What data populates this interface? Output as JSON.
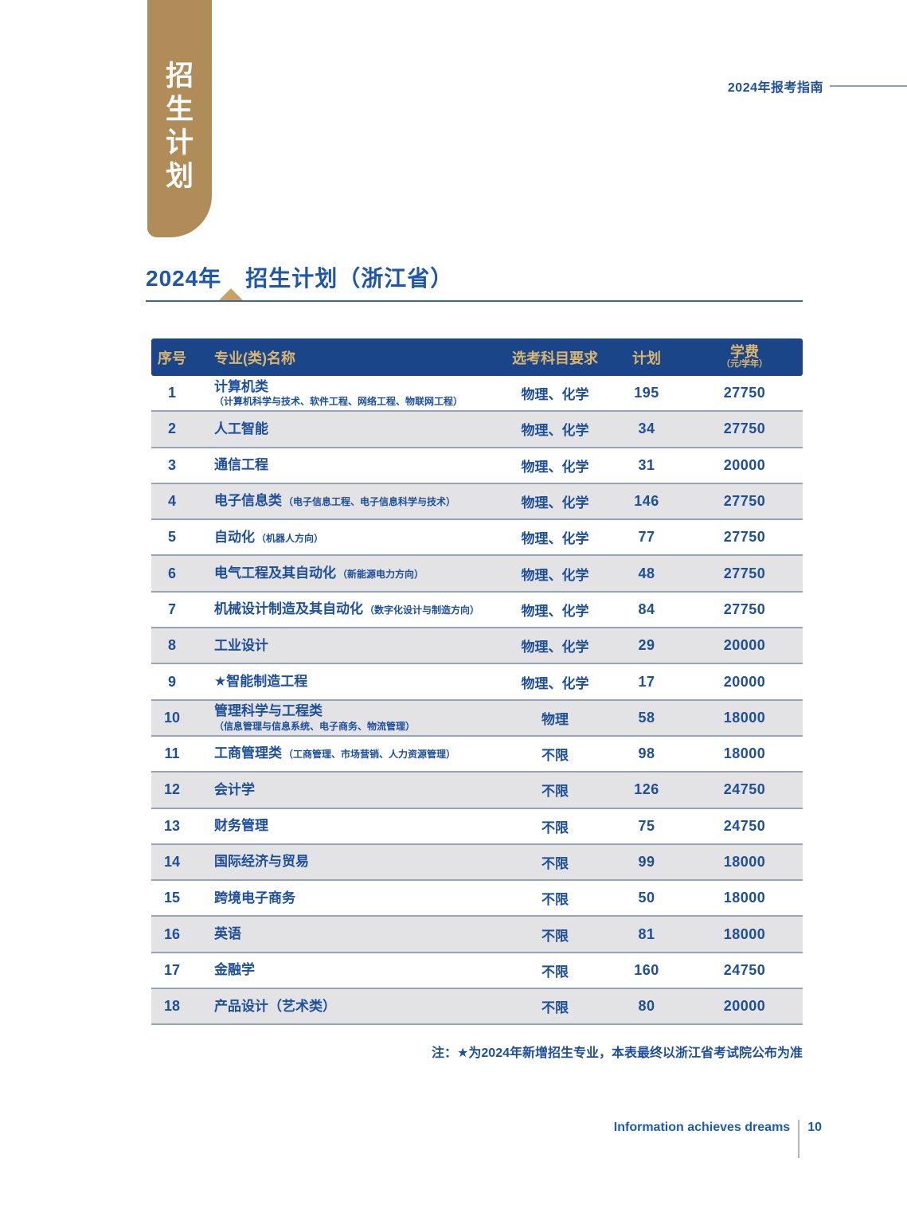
{
  "banner": {
    "chars": [
      "招",
      "生",
      "计",
      "划"
    ],
    "color": "#b08c58"
  },
  "header": {
    "guide_label": "2024年报考指南"
  },
  "title": {
    "year": "2024年",
    "text": "招生计划（浙江省）"
  },
  "table": {
    "headers": {
      "seq": "序号",
      "name": "专业(类)名称",
      "subjects": "选考科目要求",
      "plan": "计划",
      "fee": "学费",
      "fee_unit": "（元/学年）"
    },
    "rows": [
      {
        "seq": "1",
        "name": "计算机类",
        "sub": "（计算机科学与技术、软件工程、网络工程、物联网工程）",
        "sub_style": "block",
        "subjects": "物理、化学",
        "plan": "195",
        "fee": "27750"
      },
      {
        "seq": "2",
        "name": "人工智能",
        "sub": "",
        "sub_style": "none",
        "subjects": "物理、化学",
        "plan": "34",
        "fee": "27750"
      },
      {
        "seq": "3",
        "name": "通信工程",
        "sub": "",
        "sub_style": "none",
        "subjects": "物理、化学",
        "plan": "31",
        "fee": "20000"
      },
      {
        "seq": "4",
        "name": "电子信息类",
        "sub": "（电子信息工程、电子信息科学与技术）",
        "sub_style": "inline",
        "subjects": "物理、化学",
        "plan": "146",
        "fee": "27750"
      },
      {
        "seq": "5",
        "name": "自动化",
        "sub": "（机器人方向）",
        "sub_style": "inline",
        "subjects": "物理、化学",
        "plan": "77",
        "fee": "27750"
      },
      {
        "seq": "6",
        "name": "电气工程及其自动化",
        "sub": "（新能源电力方向）",
        "sub_style": "inline",
        "subjects": "物理、化学",
        "plan": "48",
        "fee": "27750"
      },
      {
        "seq": "7",
        "name": "机械设计制造及其自动化",
        "sub": "（数字化设计与制造方向）",
        "sub_style": "inline",
        "subjects": "物理、化学",
        "plan": "84",
        "fee": "27750"
      },
      {
        "seq": "8",
        "name": "工业设计",
        "sub": "",
        "sub_style": "none",
        "subjects": "物理、化学",
        "plan": "29",
        "fee": "20000"
      },
      {
        "seq": "9",
        "name": "★智能制造工程",
        "sub": "",
        "sub_style": "none",
        "subjects": "物理、化学",
        "plan": "17",
        "fee": "20000"
      },
      {
        "seq": "10",
        "name": "管理科学与工程类",
        "sub": "（信息管理与信息系统、电子商务、物流管理）",
        "sub_style": "block",
        "subjects": "物理",
        "plan": "58",
        "fee": "18000"
      },
      {
        "seq": "11",
        "name": "工商管理类",
        "sub": "（工商管理、市场营销、人力资源管理）",
        "sub_style": "inline",
        "subjects": "不限",
        "plan": "98",
        "fee": "18000"
      },
      {
        "seq": "12",
        "name": "会计学",
        "sub": "",
        "sub_style": "none",
        "subjects": "不限",
        "plan": "126",
        "fee": "24750"
      },
      {
        "seq": "13",
        "name": "财务管理",
        "sub": "",
        "sub_style": "none",
        "subjects": "不限",
        "plan": "75",
        "fee": "24750"
      },
      {
        "seq": "14",
        "name": "国际经济与贸易",
        "sub": "",
        "sub_style": "none",
        "subjects": "不限",
        "plan": "99",
        "fee": "18000"
      },
      {
        "seq": "15",
        "name": "跨境电子商务",
        "sub": "",
        "sub_style": "none",
        "subjects": "不限",
        "plan": "50",
        "fee": "18000"
      },
      {
        "seq": "16",
        "name": "英语",
        "sub": "",
        "sub_style": "none",
        "subjects": "不限",
        "plan": "81",
        "fee": "18000"
      },
      {
        "seq": "17",
        "name": "金融学",
        "sub": "",
        "sub_style": "none",
        "subjects": "不限",
        "plan": "160",
        "fee": "24750"
      },
      {
        "seq": "18",
        "name": "产品设计（艺术类）",
        "sub": "",
        "sub_style": "none",
        "subjects": "不限",
        "plan": "80",
        "fee": "20000"
      }
    ]
  },
  "note": "注：★为2024年新增招生专业，本表最终以浙江省考试院公布为准",
  "footer": {
    "slogan": "Information achieves dreams",
    "page_number": "10"
  },
  "colors": {
    "banner_gold": "#b08c58",
    "header_blue": "#1a4689",
    "header_gold_text": "#d9b570",
    "body_blue_text": "#1d4f9c",
    "row_gray": "#e3e3e5",
    "row_divider": "#97a3b9"
  }
}
